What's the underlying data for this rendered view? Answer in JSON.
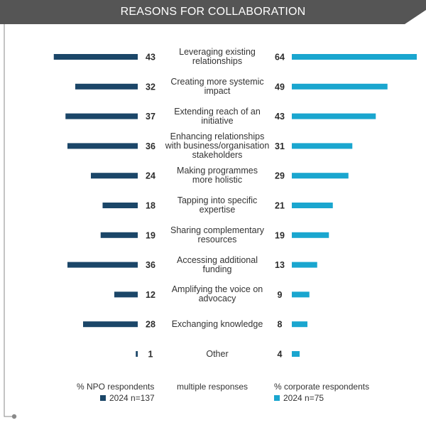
{
  "header": {
    "title": "REASONS FOR COLLABORATION"
  },
  "colors": {
    "header_bg": "#555555",
    "npo": "#1b4668",
    "corporate": "#1aa6cf",
    "frame": "#8a8a8a"
  },
  "chart_data": {
    "type": "bar",
    "title": "REASONS FOR COLLABORATION",
    "categories": [
      "Leveraging existing relationships",
      "Creating more systemic impact",
      "Extending reach of an initiative",
      "Enhancing relationships with business/organisation stakeholders",
      "Making programmes more holistic",
      "Tapping into specific expertise",
      "Sharing complementary resources",
      "Accessing additional funding",
      "Amplifying the voice on advocacy",
      "Exchanging knowledge",
      "Other"
    ],
    "category_lines": [
      [
        "Leveraging existing",
        "relationships"
      ],
      [
        "Creating more systemic",
        "impact"
      ],
      [
        "Extending reach of an",
        "initiative"
      ],
      [
        "Enhancing relationships",
        "with business/organisation",
        "stakeholders"
      ],
      [
        "Making programmes",
        "more holistic"
      ],
      [
        "Tapping into specific",
        "expertise"
      ],
      [
        "Sharing complementary",
        "resources"
      ],
      [
        "Accessing additional",
        "funding"
      ],
      [
        "Amplifying the voice on",
        "advocacy"
      ],
      [
        "Exchanging knowledge"
      ],
      [
        "Other"
      ]
    ],
    "series": [
      {
        "name": "2024 n=137",
        "values": [
          43,
          32,
          37,
          36,
          24,
          18,
          19,
          36,
          12,
          28,
          1
        ]
      },
      {
        "name": "2024 n=75",
        "values": [
          64,
          49,
          43,
          31,
          29,
          21,
          19,
          13,
          9,
          8,
          4
        ]
      }
    ],
    "left_heading": "% NPO respondents",
    "center_note": "multiple responses",
    "right_heading": "% corporate respondents",
    "legend": "bottom",
    "grid": false
  }
}
